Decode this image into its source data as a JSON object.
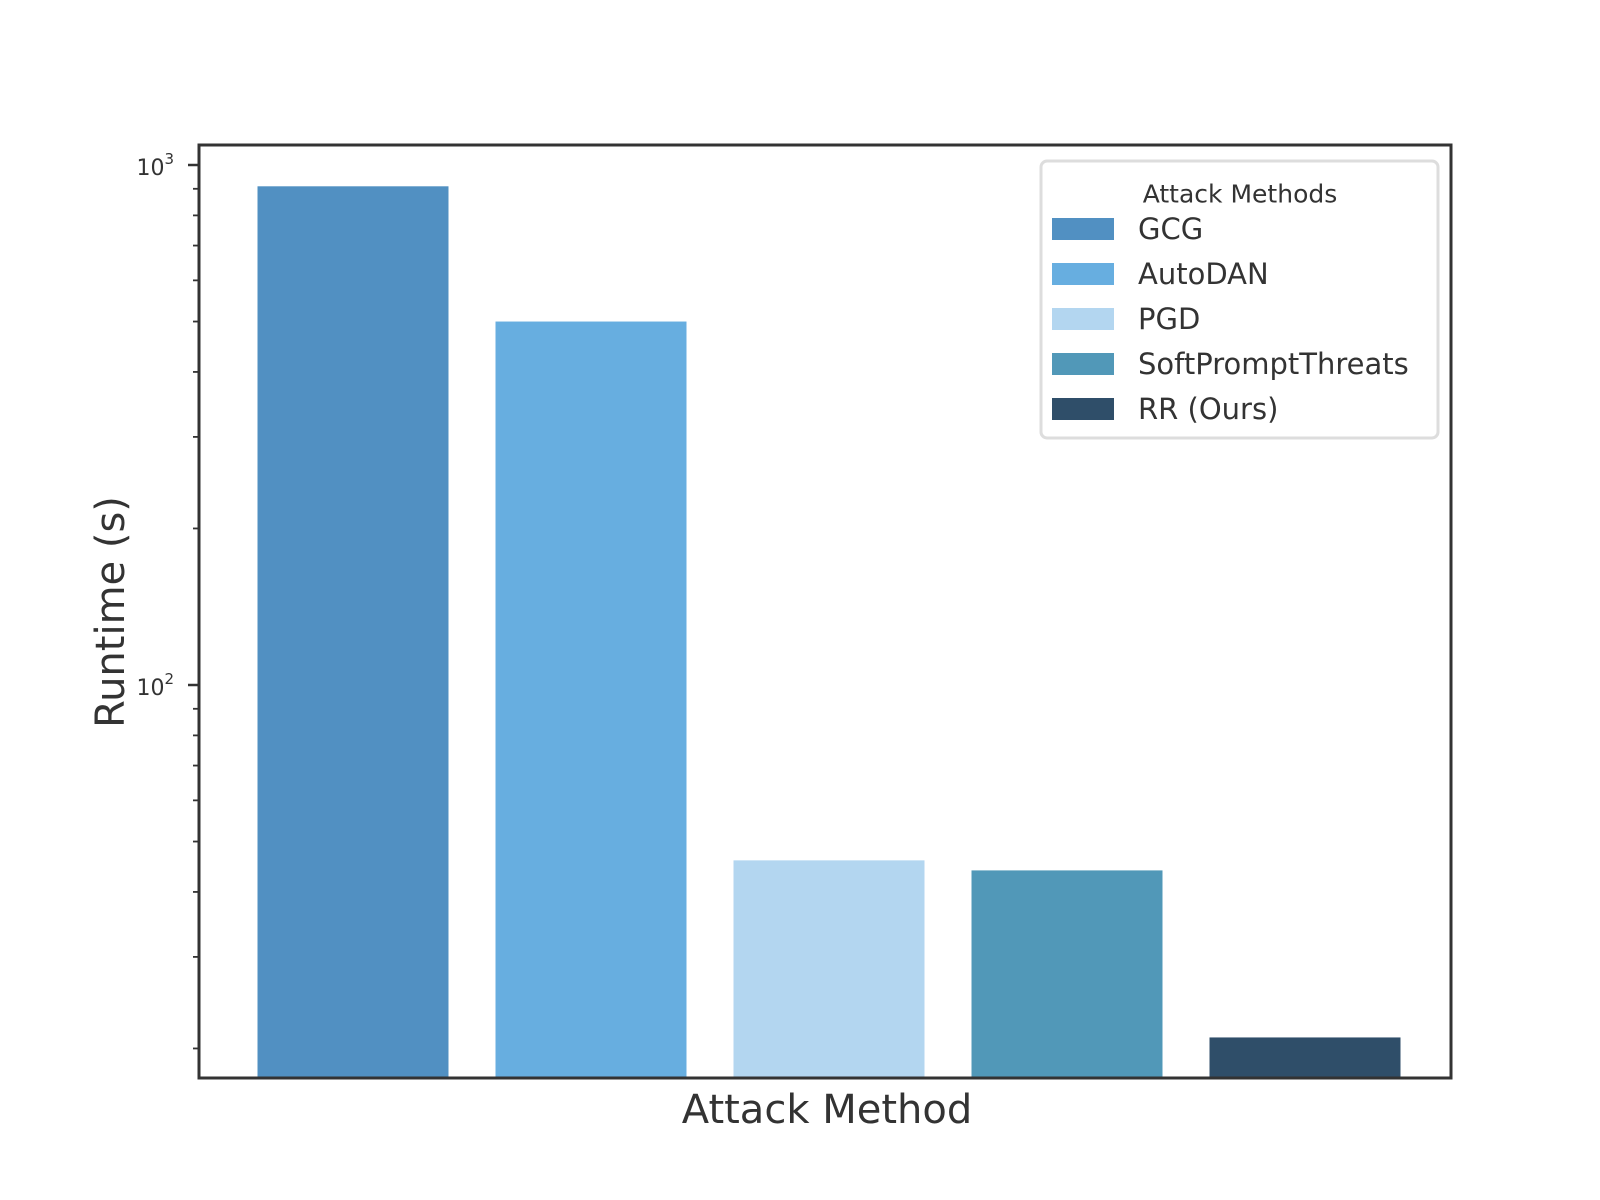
{
  "chart_data": {
    "type": "bar",
    "scale": "log",
    "xlabel": "Attack Method",
    "ylabel": "Runtime (s)",
    "ylim": [
      17,
      1000
    ],
    "yticks": [
      {
        "base": "10",
        "exp": "2",
        "value": 100
      },
      {
        "base": "10",
        "exp": "3",
        "value": 1000
      }
    ],
    "grid": false,
    "legend": {
      "title": "Attack Methods",
      "position": "top-right"
    },
    "series": [
      {
        "name": "GCG",
        "value": 910,
        "color": "#5190c2"
      },
      {
        "name": "AutoDAN",
        "value": 500,
        "color": "#67aee0"
      },
      {
        "name": "PGD",
        "value": 46,
        "color": "#b3d6f0"
      },
      {
        "name": "SoftPromptThreats",
        "value": 44,
        "color": "#5198b8"
      },
      {
        "name": "RR (Ours)",
        "value": 21,
        "color": "#2f4e69"
      }
    ]
  }
}
